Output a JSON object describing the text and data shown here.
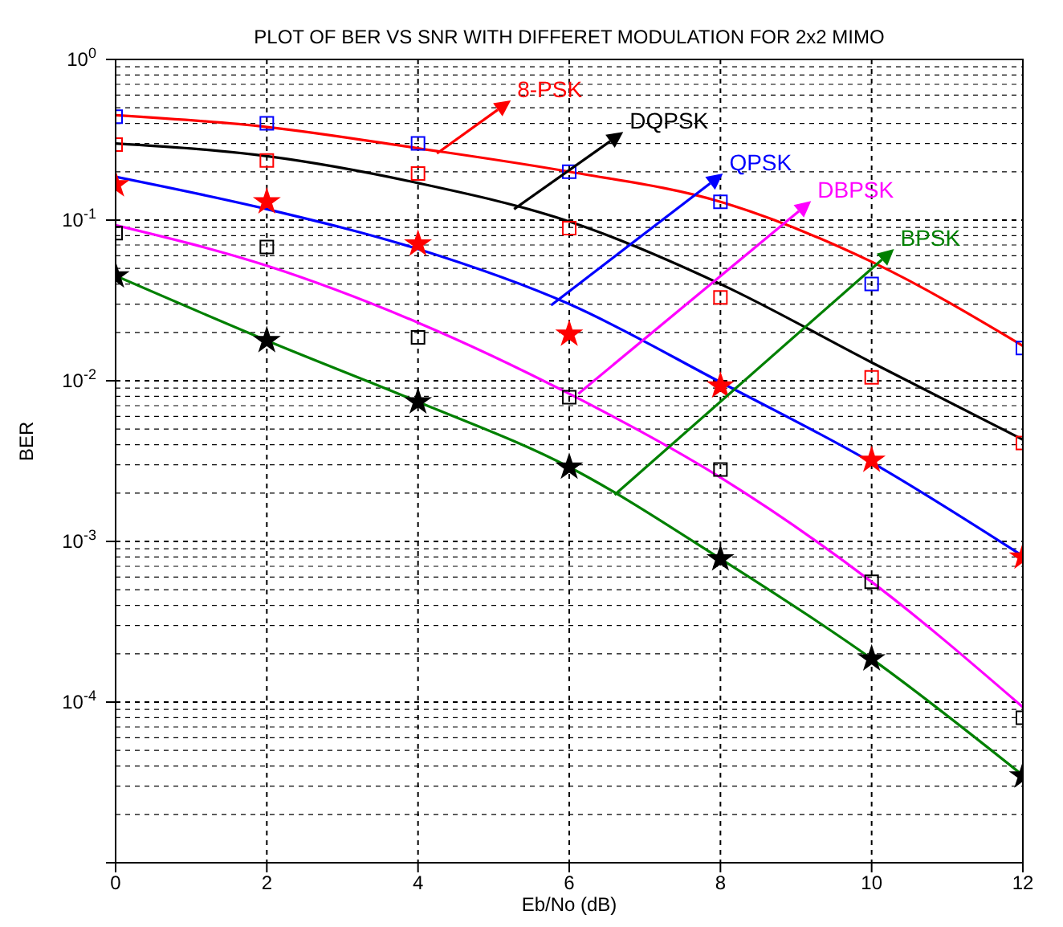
{
  "chart_data": {
    "type": "line",
    "title": "PLOT OF BER VS SNR WITH DIFFERET  MODULATION FOR 2x2 MIMO",
    "xlabel": "Eb/No (dB)",
    "ylabel": "BER",
    "x": [
      0,
      2,
      4,
      6,
      8,
      10,
      12
    ],
    "series": [
      {
        "color": "#ff0000",
        "marker": "none",
        "values": [
          0.45,
          0.38,
          0.28,
          0.2,
          0.13,
          0.055,
          0.0165
        ]
      },
      {
        "color": "#000000",
        "marker": "none",
        "values": [
          0.3,
          0.25,
          0.17,
          0.098,
          0.04,
          0.013,
          0.0043
        ]
      },
      {
        "color": "#0000ff",
        "marker": "none",
        "values": [
          0.186,
          0.117,
          0.066,
          0.03,
          0.0098,
          0.0031,
          0.00081
        ]
      },
      {
        "color": "#ff00ff",
        "marker": "none",
        "values": [
          0.093,
          0.052,
          0.023,
          0.0083,
          0.0025,
          0.00056,
          9.3e-05
        ]
      },
      {
        "color": "#008000",
        "marker": "none",
        "values": [
          0.045,
          0.0178,
          0.0074,
          0.0029,
          0.00078,
          0.000186,
          3.5e-05
        ]
      },
      {
        "type": "scatter",
        "color": "#0000ff",
        "marker": "square",
        "values": [
          0.44,
          0.4,
          0.3,
          0.2,
          0.13,
          0.04,
          0.016
        ]
      },
      {
        "type": "scatter",
        "color": "#ff0000",
        "marker": "square",
        "values": [
          0.295,
          0.235,
          0.195,
          0.089,
          0.033,
          0.0105,
          0.0041
        ]
      },
      {
        "type": "scatter",
        "color": "#ff0000",
        "marker": "star",
        "values": [
          0.166,
          0.13,
          0.071,
          0.0195,
          0.0093,
          0.0032,
          0.0008
        ]
      },
      {
        "type": "scatter",
        "color": "#000000",
        "marker": "square",
        "values": [
          0.083,
          0.068,
          0.0186,
          0.0079,
          0.0028,
          0.00056,
          8e-05
        ]
      },
      {
        "type": "scatter",
        "color": "#000000",
        "marker": "star",
        "values": [
          0.045,
          0.0178,
          0.0074,
          0.0029,
          0.00078,
          0.000186,
          3.47e-05
        ]
      }
    ],
    "annotations": [
      {
        "text": "8-PSK",
        "x": 4.25,
        "y": 0.26
      },
      {
        "text": "DQPSK",
        "x": 5.27,
        "y": 0.117
      },
      {
        "text": "QPSK",
        "x": 5.76,
        "y": 0.0295
      },
      {
        "text": "DBPSK",
        "x": 6.12,
        "y": 0.0083
      },
      {
        "text": "BPSK",
        "x": 6.6,
        "y": 0.00195
      }
    ],
    "log": "y",
    "grid": true,
    "xlim": [
      0,
      12
    ],
    "xticks": [
      0,
      2,
      4,
      6,
      8,
      10,
      12
    ],
    "ylim": [
      1e-05,
      1
    ],
    "yticks": [
      {
        "value": 1e-05,
        "label": null
      },
      {
        "value": 0.0001,
        "label": "10$^{-4}$"
      },
      {
        "value": 0.001,
        "label": "10$^{-3}$"
      },
      {
        "value": 0.01,
        "label": "10$^{-2}$"
      },
      {
        "value": 0.1,
        "label": "10$^{-1}$"
      },
      {
        "value": 1,
        "label": "10$^{0}$"
      }
    ]
  }
}
